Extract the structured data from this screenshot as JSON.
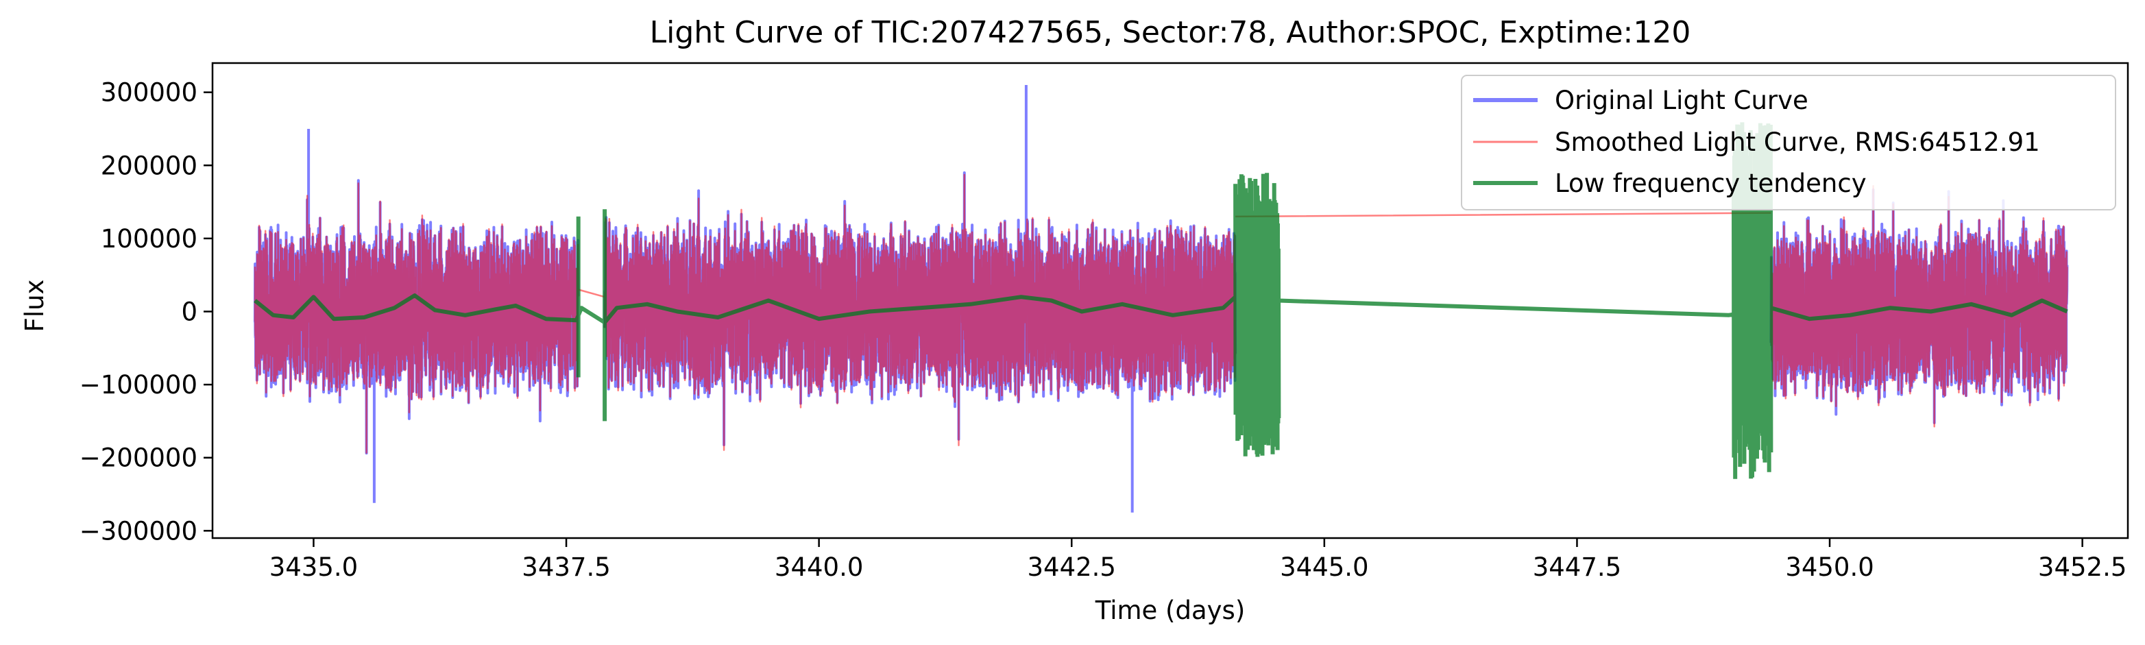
{
  "chart_data": {
    "type": "line",
    "title": "Light Curve of TIC:207427565, Sector:78, Author:SPOC, Exptime:120",
    "xlabel": "Time (days)",
    "ylabel": "Flux",
    "xlim": [
      3434.0,
      3452.95
    ],
    "ylim": [
      -310000,
      340000
    ],
    "xticks": [
      3435.0,
      3437.5,
      3440.0,
      3442.5,
      3445.0,
      3447.5,
      3450.0,
      3452.5
    ],
    "xtick_labels": [
      "3435.0",
      "3437.5",
      "3440.0",
      "3442.5",
      "3445.0",
      "3447.5",
      "3450.0",
      "3452.5"
    ],
    "yticks": [
      300000,
      200000,
      100000,
      0,
      -100000,
      -200000,
      -300000
    ],
    "ytick_labels": [
      "300000",
      "200000",
      "100000",
      "0",
      "−100000",
      "−200000",
      "−300000"
    ],
    "grid": false,
    "legend_position": "top-right",
    "colors": {
      "original": "#0000ff",
      "smoothed": "#ff0000",
      "trend": "#007a1f"
    },
    "series": [
      {
        "name": "Original Light Curve",
        "color": "#0000ff",
        "opacity": 0.5,
        "segments": [
          [
            3434.42,
            3437.62
          ],
          [
            3437.88,
            3444.12
          ],
          [
            3449.42,
            3452.35
          ]
        ],
        "amplitude_typical": 130000,
        "extremes": [
          [
            3442.05,
            310000
          ],
          [
            3434.95,
            250000
          ],
          [
            3443.1,
            -275000
          ],
          [
            3435.6,
            -262000
          ]
        ]
      },
      {
        "name": "Smoothed Light Curve, RMS:64512.91",
        "color": "#ff0000",
        "opacity": 0.5,
        "rms": 64512.91,
        "gap_connections": [
          [
            [
              3437.62,
              30000
            ],
            [
              3437.88,
              20000
            ]
          ],
          [
            [
              3444.12,
              130000
            ],
            [
              3449.42,
              135000
            ]
          ]
        ]
      },
      {
        "name": "Low frequency tendency",
        "color": "#007a1f",
        "opacity": 0.75,
        "x": [
          3434.42,
          3434.6,
          3434.8,
          3435.0,
          3435.2,
          3435.5,
          3435.8,
          3436.0,
          3436.2,
          3436.5,
          3436.8,
          3437.0,
          3437.3,
          3437.6,
          3437.65,
          3437.88,
          3438.0,
          3438.3,
          3438.6,
          3439.0,
          3439.5,
          3440.0,
          3440.5,
          3441.0,
          3441.5,
          3442.0,
          3442.3,
          3442.6,
          3443.0,
          3443.5,
          3444.0,
          3444.12,
          3444.55,
          3449.0,
          3449.42,
          3449.8,
          3450.2,
          3450.6,
          3451.0,
          3451.4,
          3451.8,
          3452.1,
          3452.35
        ],
        "y": [
          15000,
          -5000,
          -8000,
          20000,
          -10000,
          -8000,
          5000,
          22000,
          2000,
          -5000,
          3000,
          8000,
          -10000,
          -12000,
          5000,
          -15000,
          5000,
          10000,
          0,
          -8000,
          15000,
          -10000,
          0,
          5000,
          10000,
          20000,
          15000,
          0,
          10000,
          -5000,
          5000,
          20000,
          15000,
          -5000,
          5000,
          -10000,
          -5000,
          5000,
          0,
          10000,
          -5000,
          15000,
          0
        ],
        "noisy_blocks": [
          [
            3444.12,
            3444.55,
            190000,
            -200000
          ],
          [
            3449.05,
            3449.42,
            260000,
            -230000
          ]
        ]
      }
    ]
  }
}
